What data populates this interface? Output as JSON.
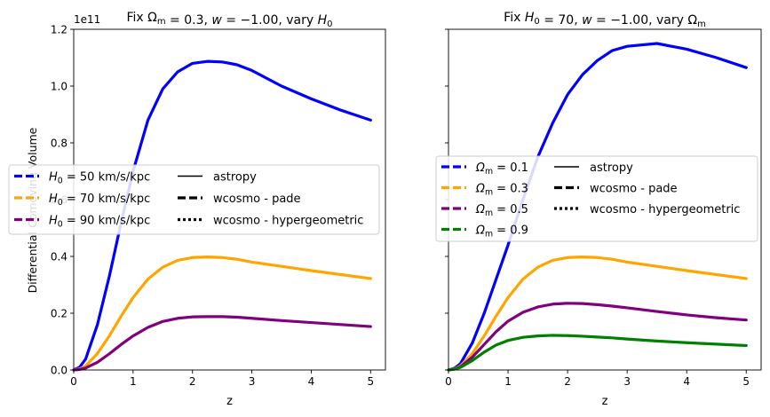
{
  "chart_data": [
    {
      "type": "line",
      "title": "Fix Ωm = 0.3, w = −1.00, vary H0",
      "xlabel": "z",
      "ylabel": "Differential Comoving Volume",
      "y_offset_label": "1e11",
      "xlim": [
        0,
        5.25
      ],
      "ylim": [
        0,
        1.2
      ],
      "xticks": [
        0,
        1,
        2,
        3,
        4,
        5
      ],
      "yticks": [
        0.0,
        0.2,
        0.4,
        0.6,
        0.8,
        1.0,
        1.2
      ],
      "ytick_labels": [
        "0.0",
        "0.2",
        "0.4",
        "0.6",
        "0.8",
        "1.0",
        "1.2"
      ],
      "grid": false,
      "legend_placement": "center-left",
      "x": [
        0,
        0.1,
        0.2,
        0.4,
        0.6,
        0.8,
        1.0,
        1.25,
        1.5,
        1.75,
        2.0,
        2.25,
        2.5,
        2.75,
        3.0,
        3.5,
        4.0,
        4.5,
        5.0
      ],
      "series": [
        {
          "name": "H0 = 50 km/s/kpc",
          "label_parts": [
            "H",
            "0",
            " = 50 km/s/kpc"
          ],
          "color": "#0000ff",
          "values": [
            0,
            0.01,
            0.038,
            0.16,
            0.33,
            0.52,
            0.7,
            0.88,
            0.99,
            1.05,
            1.08,
            1.087,
            1.085,
            1.075,
            1.055,
            1.0,
            0.955,
            0.915,
            0.88
          ]
        },
        {
          "name": "H0 = 70 km/s/kpc",
          "label_parts": [
            "H",
            "0",
            " = 70 km/s/kpc"
          ],
          "color": "#ffa500",
          "values": [
            0,
            0.004,
            0.014,
            0.058,
            0.12,
            0.19,
            0.255,
            0.32,
            0.362,
            0.386,
            0.396,
            0.398,
            0.396,
            0.39,
            0.38,
            0.365,
            0.35,
            0.336,
            0.322
          ]
        },
        {
          "name": "H0 = 90 km/s/kpc",
          "label_parts": [
            "H",
            "0",
            " = 90 km/s/kpc"
          ],
          "color": "#800080",
          "values": [
            0,
            0.002,
            0.007,
            0.027,
            0.057,
            0.09,
            0.12,
            0.15,
            0.171,
            0.182,
            0.187,
            0.188,
            0.188,
            0.186,
            0.182,
            0.174,
            0.167,
            0.16,
            0.153
          ]
        }
      ],
      "style_legend": [
        {
          "label": "astropy",
          "dash": "solid"
        },
        {
          "label": "wcosmo - pade",
          "dash": "dashed"
        },
        {
          "label": "wcosmo - hypergeometric",
          "dash": "dotted"
        }
      ]
    },
    {
      "type": "line",
      "title": "Fix H0 = 70, w = −1.00, vary Ωm",
      "xlabel": "z",
      "ylabel": "",
      "xlim": [
        0,
        5.25
      ],
      "ylim": [
        0,
        1.2
      ],
      "xticks": [
        0,
        1,
        2,
        3,
        4,
        5
      ],
      "yticks": [
        0.0,
        0.2,
        0.4,
        0.6,
        0.8,
        1.0,
        1.2
      ],
      "ytick_labels": [],
      "grid": false,
      "legend_placement": "center-left",
      "x": [
        0,
        0.1,
        0.2,
        0.4,
        0.6,
        0.8,
        1.0,
        1.25,
        1.5,
        1.75,
        2.0,
        2.25,
        2.5,
        2.75,
        3.0,
        3.5,
        4.0,
        4.5,
        5.0
      ],
      "series": [
        {
          "name": "Ωm = 0.1",
          "label_parts": [
            "Ω",
            "m",
            " = 0.1"
          ],
          "color": "#0000ff",
          "values": [
            0,
            0.006,
            0.022,
            0.095,
            0.2,
            0.32,
            0.44,
            0.6,
            0.75,
            0.87,
            0.97,
            1.04,
            1.09,
            1.125,
            1.14,
            1.15,
            1.13,
            1.1,
            1.065
          ]
        },
        {
          "name": "Ωm = 0.3",
          "label_parts": [
            "Ω",
            "m",
            " = 0.3"
          ],
          "color": "#ffa500",
          "values": [
            0,
            0.004,
            0.014,
            0.058,
            0.12,
            0.19,
            0.255,
            0.32,
            0.362,
            0.386,
            0.396,
            0.398,
            0.396,
            0.39,
            0.38,
            0.365,
            0.35,
            0.336,
            0.322
          ]
        },
        {
          "name": "Ωm = 0.5",
          "label_parts": [
            "Ω",
            "m",
            " = 0.5"
          ],
          "color": "#800080",
          "values": [
            0,
            0.003,
            0.011,
            0.045,
            0.09,
            0.135,
            0.172,
            0.203,
            0.222,
            0.232,
            0.235,
            0.234,
            0.23,
            0.225,
            0.219,
            0.206,
            0.194,
            0.184,
            0.176
          ]
        },
        {
          "name": "Ωm = 0.9",
          "label_parts": [
            "Ω",
            "m",
            " = 0.9"
          ],
          "color": "#008000",
          "values": [
            0,
            0.003,
            0.009,
            0.033,
            0.063,
            0.088,
            0.104,
            0.115,
            0.12,
            0.122,
            0.121,
            0.119,
            0.116,
            0.113,
            0.109,
            0.102,
            0.096,
            0.091,
            0.086
          ]
        }
      ],
      "style_legend": [
        {
          "label": "astropy",
          "dash": "solid"
        },
        {
          "label": "wcosmo - pade",
          "dash": "dashed"
        },
        {
          "label": "wcosmo - hypergeometric",
          "dash": "dotted"
        }
      ]
    }
  ]
}
